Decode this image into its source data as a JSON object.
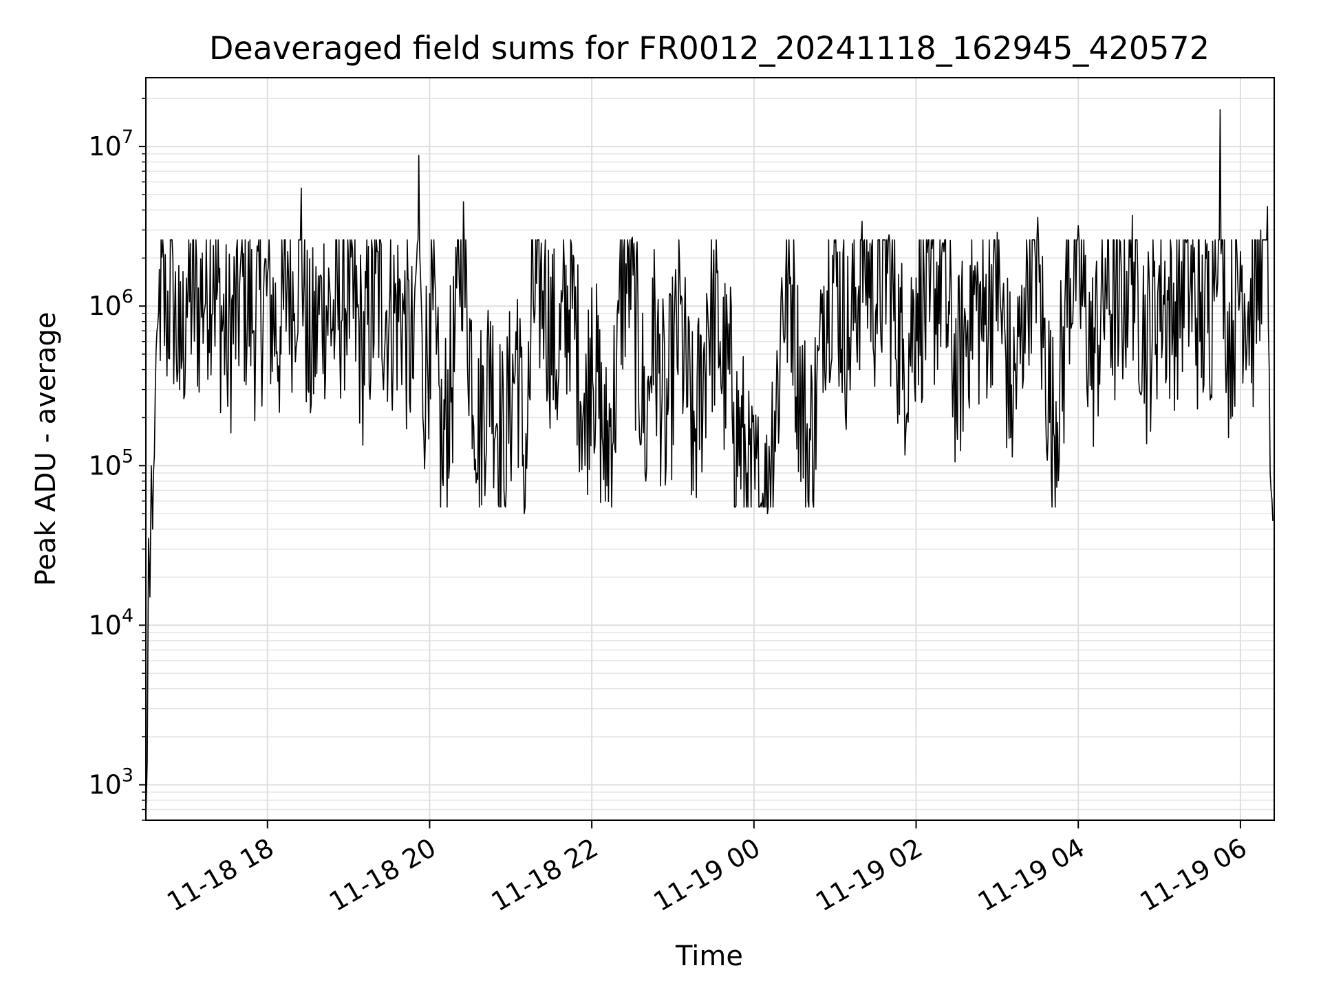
{
  "chart_data": {
    "type": "line",
    "title": "Deaveraged field sums for FR0012_20241118_162945_420572",
    "xlabel": "Time",
    "ylabel": "Peak ADU - average",
    "yscale": "log",
    "ylim": [
      600,
      27000000
    ],
    "xlim": [
      "2024-11-18 16:30",
      "2024-11-19 06:25"
    ],
    "grid": true,
    "line_color": "#000000",
    "x_ticks": [
      "11-18 18",
      "11-18 20",
      "11-18 22",
      "11-19 00",
      "11-19 02",
      "11-19 04",
      "11-19 06"
    ],
    "y_ticks": [
      {
        "base": "10",
        "exp": "3",
        "value": 1000
      },
      {
        "base": "10",
        "exp": "4",
        "value": 10000
      },
      {
        "base": "10",
        "exp": "5",
        "value": 100000
      },
      {
        "base": "10",
        "exp": "6",
        "value": 1000000
      },
      {
        "base": "10",
        "exp": "7",
        "value": 10000000
      }
    ],
    "series": [
      {
        "x": [
          "2024-11-18 16:30",
          "2024-11-18 16:31",
          "2024-11-18 16:32",
          "2024-11-18 16:33",
          "2024-11-18 16:34",
          "2024-11-18 16:35",
          "2024-11-18 16:37",
          "2024-11-18 16:40",
          "2024-11-18 16:45",
          "2024-11-18 16:50",
          "2024-11-18 16:55",
          "2024-11-18 17:00",
          "2024-11-18 17:10",
          "2024-11-18 17:20",
          "2024-11-18 17:30",
          "2024-11-18 17:40",
          "2024-11-18 17:50",
          "2024-11-18 18:00",
          "2024-11-18 18:10",
          "2024-11-18 18:15",
          "2024-11-18 18:20",
          "2024-11-18 18:25",
          "2024-11-18 18:30",
          "2024-11-18 18:40",
          "2024-11-18 18:50",
          "2024-11-18 19:00",
          "2024-11-18 19:10",
          "2024-11-18 19:20",
          "2024-11-18 19:30",
          "2024-11-18 19:40",
          "2024-11-18 19:48",
          "2024-11-18 19:52",
          "2024-11-18 19:55",
          "2024-11-18 20:00",
          "2024-11-18 20:05",
          "2024-11-18 20:10",
          "2024-11-18 20:20",
          "2024-11-18 20:25",
          "2024-11-18 20:35",
          "2024-11-18 20:45",
          "2024-11-18 20:55",
          "2024-11-18 21:05",
          "2024-11-18 21:10",
          "2024-11-18 21:15",
          "2024-11-18 21:25",
          "2024-11-18 21:35",
          "2024-11-18 21:45",
          "2024-11-18 21:55",
          "2024-11-18 22:00",
          "2024-11-18 22:10",
          "2024-11-18 22:20",
          "2024-11-18 22:30",
          "2024-11-18 22:40",
          "2024-11-18 22:45",
          "2024-11-18 22:55",
          "2024-11-18 23:05",
          "2024-11-18 23:15",
          "2024-11-18 23:25",
          "2024-11-18 23:35",
          "2024-11-18 23:45",
          "2024-11-18 23:55",
          "2024-11-19 00:10",
          "2024-11-19 00:20",
          "2024-11-19 00:30",
          "2024-11-19 00:40",
          "2024-11-19 00:50",
          "2024-11-19 01:00",
          "2024-11-19 01:10",
          "2024-11-19 01:20",
          "2024-11-19 01:30",
          "2024-11-19 01:40",
          "2024-11-19 01:50",
          "2024-11-19 02:00",
          "2024-11-19 02:10",
          "2024-11-19 02:20",
          "2024-11-19 02:30",
          "2024-11-19 02:40",
          "2024-11-19 02:50",
          "2024-11-19 03:00",
          "2024-11-19 03:10",
          "2024-11-19 03:20",
          "2024-11-19 03:30",
          "2024-11-19 03:40",
          "2024-11-19 03:50",
          "2024-11-19 04:00",
          "2024-11-19 04:10",
          "2024-11-19 04:20",
          "2024-11-19 04:30",
          "2024-11-19 04:40",
          "2024-11-19 04:50",
          "2024-11-19 05:00",
          "2024-11-19 05:10",
          "2024-11-19 05:20",
          "2024-11-19 05:30",
          "2024-11-19 05:40",
          "2024-11-19 05:45",
          "2024-11-19 05:50",
          "2024-11-19 06:00",
          "2024-11-19 06:10",
          "2024-11-19 06:15",
          "2024-11-19 06:20",
          "2024-11-19 06:22",
          "2024-11-19 06:24"
        ],
        "values": [
          600,
          1400,
          35000,
          15000,
          100000,
          40000,
          300000,
          1700000,
          700000,
          2000000,
          300000,
          1500000,
          900000,
          2400000,
          400000,
          1800000,
          700000,
          1600000,
          500000,
          2200000,
          900000,
          5500000,
          300000,
          1500000,
          700000,
          1900000,
          400000,
          1600000,
          800000,
          1200000,
          350000,
          8800000,
          200000,
          1200000,
          500000,
          75000,
          1300000,
          4500000,
          90000,
          800000,
          70000,
          1100000,
          50000,
          900000,
          1800000,
          300000,
          2400000,
          100000,
          1300000,
          60000,
          900000,
          2700000,
          80000,
          1500000,
          100000,
          1800000,
          70000,
          1200000,
          600000,
          250000,
          90000,
          50000,
          1100000,
          1500000,
          60000,
          900000,
          2500000,
          400000,
          3400000,
          900000,
          2800000,
          300000,
          1500000,
          800000,
          2500000,
          200000,
          1800000,
          600000,
          2900000,
          150000,
          1300000,
          3600000,
          90000,
          1000000,
          3200000,
          300000,
          2000000,
          600000,
          3700000,
          400000,
          1800000,
          700000,
          2500000,
          600000,
          1500000,
          17000000,
          400000,
          2200000,
          700000,
          3000000,
          4200000,
          90000,
          45000
        ]
      }
    ]
  }
}
